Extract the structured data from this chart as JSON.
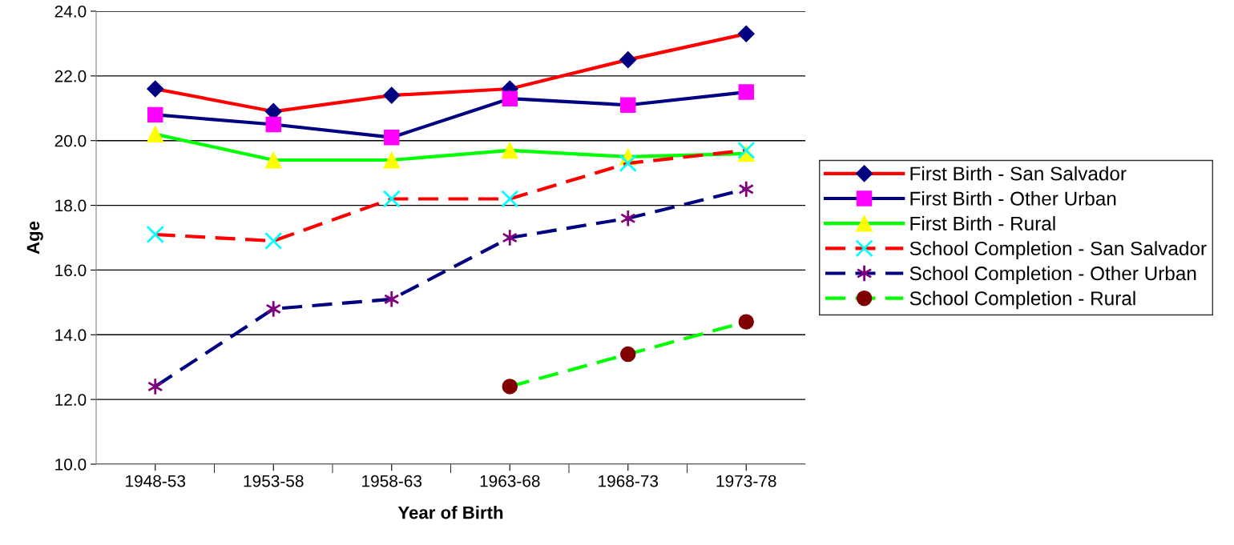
{
  "chart_data": {
    "type": "line",
    "xlabel": "Year of Birth",
    "ylabel": "Age",
    "categories": [
      "1948-53",
      "1953-58",
      "1958-63",
      "1963-68",
      "1968-73",
      "1973-78"
    ],
    "ylim": [
      10,
      24
    ],
    "yticks": [
      {
        "value": 10,
        "label": "10.0"
      },
      {
        "value": 12,
        "label": "12.0"
      },
      {
        "value": 14,
        "label": "14.0"
      },
      {
        "value": 16,
        "label": "16.0"
      },
      {
        "value": 18,
        "label": "18.0"
      },
      {
        "value": 20,
        "label": "20.0"
      },
      {
        "value": 22,
        "label": "22.0"
      },
      {
        "value": 24,
        "label": "24.0"
      }
    ],
    "grid": "y",
    "legend": "right",
    "series": [
      {
        "name": "First Birth - San Salvador",
        "color": "#ff0000",
        "colors": [
          "#000080",
          "#000080",
          "#000080",
          "#000080",
          "#000080",
          "#000080"
        ],
        "marker": "diamond",
        "line_style": "solid",
        "values": [
          21.6,
          20.9,
          21.4,
          21.6,
          22.5,
          23.3
        ]
      },
      {
        "name": "First Birth - Other Urban",
        "color": "#000080",
        "colors": [
          "#ff00ff",
          "#ff00ff",
          "#ff00ff",
          "#ff00ff",
          "#ff00ff",
          "#ff00ff"
        ],
        "marker": "square",
        "line_style": "solid",
        "values": [
          20.8,
          20.5,
          20.1,
          21.3,
          21.1,
          21.5
        ]
      },
      {
        "name": "First Birth - Rural",
        "color": "#00ff00",
        "colors": [
          "#ffff00",
          "#ffff00",
          "#ffff00",
          "#ffff00",
          "#ffff00",
          "#ffff00"
        ],
        "marker": "triangle",
        "line_style": "solid",
        "values": [
          20.2,
          19.4,
          19.4,
          19.7,
          19.5,
          19.6
        ]
      },
      {
        "name": "School Completion - San Salvador",
        "color": "#ff0000",
        "colors": [
          "#00ffff",
          "#00ffff",
          "#00ffff",
          "#00ffff",
          "#00ffff",
          "#00ffff"
        ],
        "marker": "cross",
        "line_style": "dashed",
        "values": [
          17.1,
          16.9,
          18.2,
          18.2,
          19.3,
          19.7
        ]
      },
      {
        "name": "School Completion - Other Urban",
        "color": "#000080",
        "colors": [
          "#800080",
          "#800080",
          "#800080",
          "#800080",
          "#800080",
          "#800080"
        ],
        "marker": "cross",
        "line_style": "dashed",
        "values": [
          12.4,
          14.8,
          15.1,
          17.0,
          17.6,
          18.5
        ]
      },
      {
        "name": "School Completion - Rural",
        "color": "#00ff00",
        "colors": [
          null,
          null,
          null,
          "#800000",
          "#800000",
          "#800000"
        ],
        "marker": "circle",
        "line_style": "dashed",
        "values": [
          null,
          null,
          null,
          12.4,
          13.4,
          14.4
        ]
      }
    ]
  }
}
